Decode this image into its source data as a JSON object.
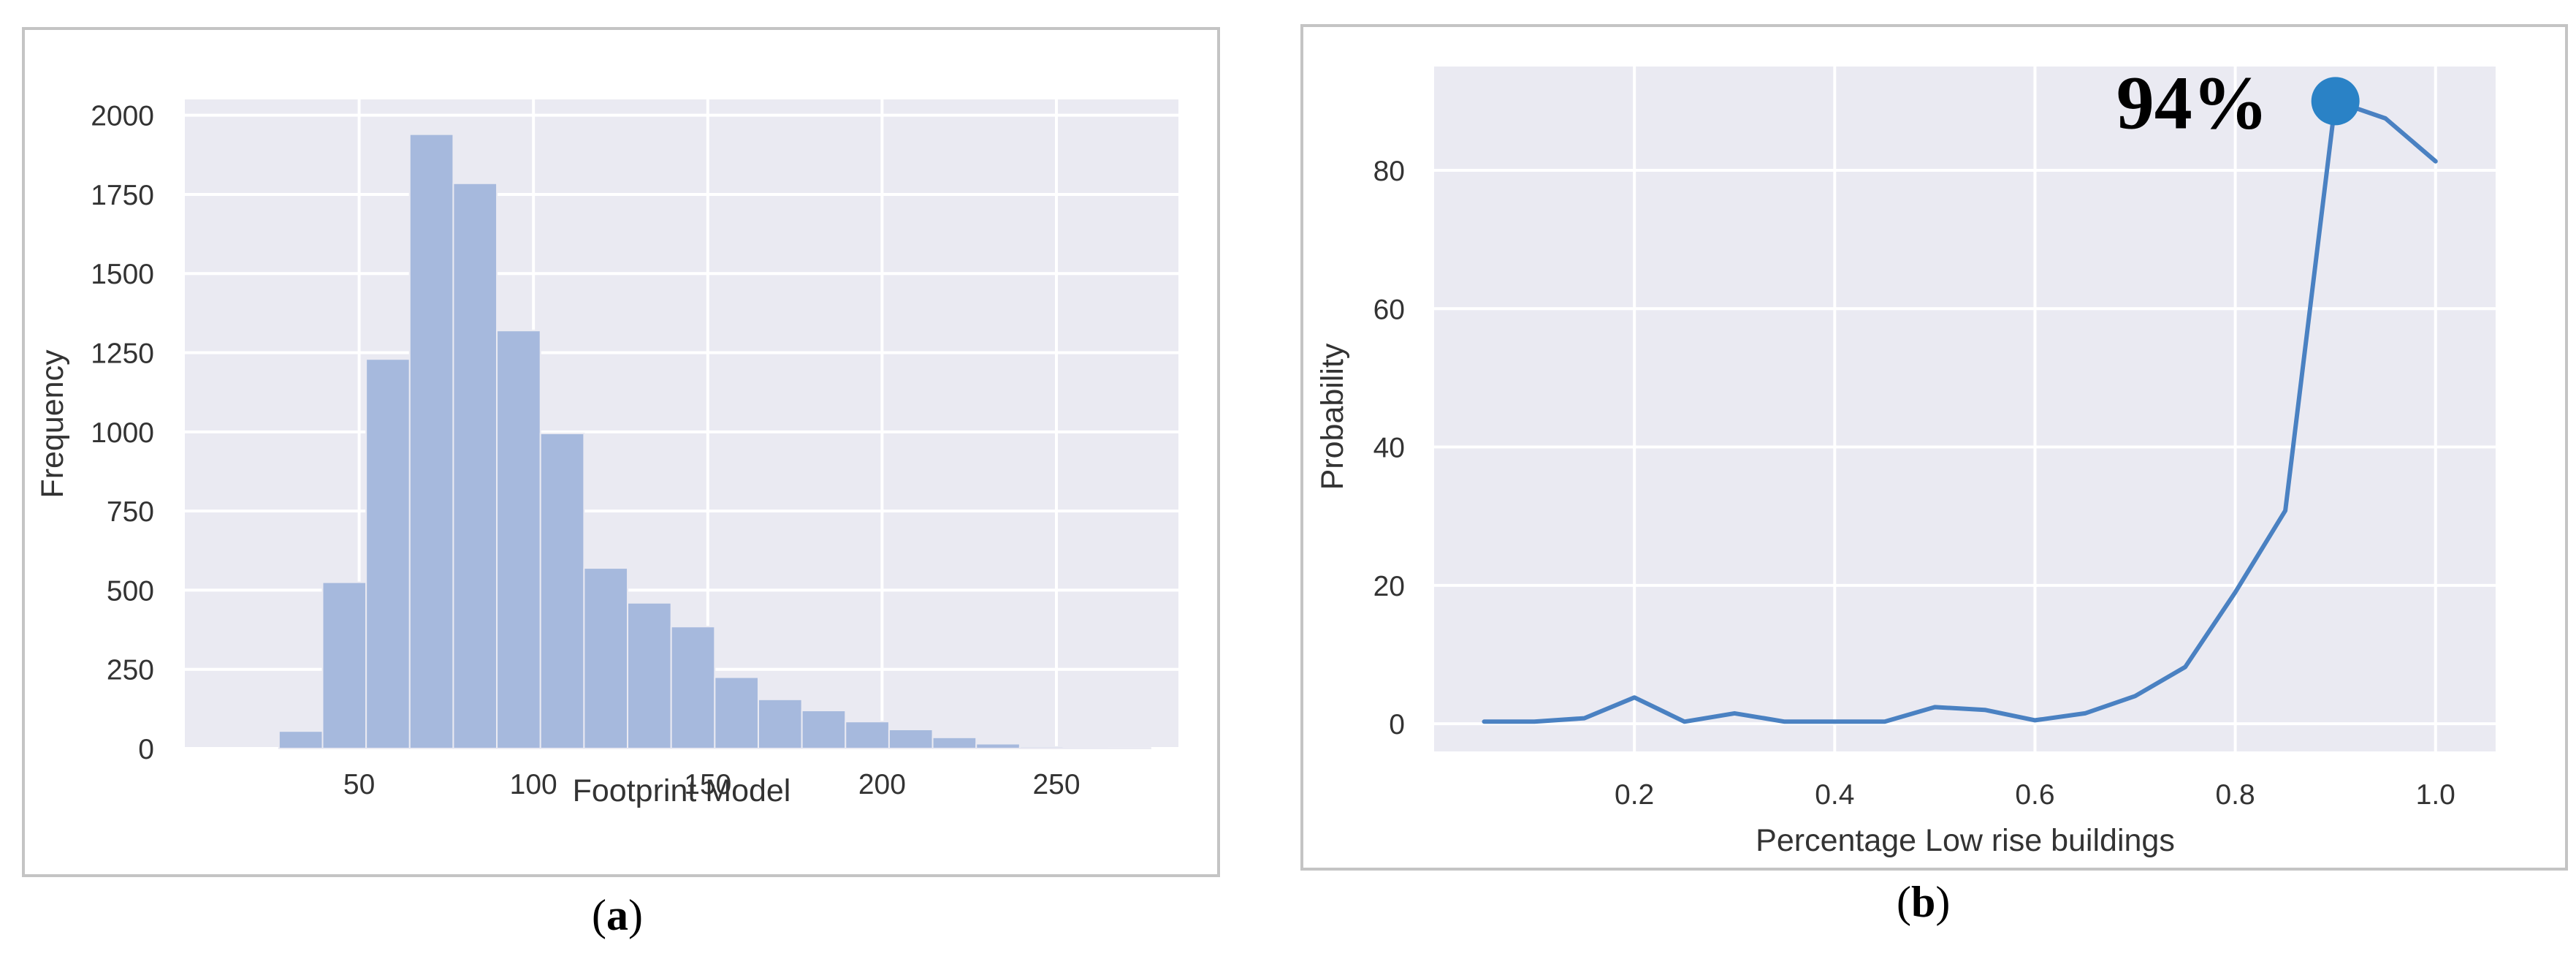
{
  "chart_data": [
    {
      "type": "bar",
      "panel_label": "a",
      "xlabel": "Footprint Model",
      "ylabel": "Frequency",
      "xlim": [
        0,
        285
      ],
      "ylim": [
        0,
        2050
      ],
      "xticks": [
        50,
        100,
        150,
        200,
        250
      ],
      "yticks": [
        0,
        250,
        500,
        750,
        1000,
        1250,
        1500,
        1750,
        2000
      ],
      "bins": [
        {
          "start": 27.0,
          "end": 39.5,
          "value": 55
        },
        {
          "start": 39.5,
          "end": 52.0,
          "value": 525
        },
        {
          "start": 52.0,
          "end": 64.5,
          "value": 1230
        },
        {
          "start": 64.5,
          "end": 77.0,
          "value": 1940
        },
        {
          "start": 77.0,
          "end": 89.5,
          "value": 1785
        },
        {
          "start": 89.5,
          "end": 102.0,
          "value": 1320
        },
        {
          "start": 102.0,
          "end": 114.5,
          "value": 995
        },
        {
          "start": 114.5,
          "end": 127.0,
          "value": 570
        },
        {
          "start": 127.0,
          "end": 139.5,
          "value": 460
        },
        {
          "start": 139.5,
          "end": 152.0,
          "value": 385
        },
        {
          "start": 152.0,
          "end": 164.5,
          "value": 225
        },
        {
          "start": 164.5,
          "end": 177.0,
          "value": 155
        },
        {
          "start": 177.0,
          "end": 189.5,
          "value": 120
        },
        {
          "start": 189.5,
          "end": 202.0,
          "value": 85
        },
        {
          "start": 202.0,
          "end": 214.5,
          "value": 60
        },
        {
          "start": 214.5,
          "end": 227.0,
          "value": 35
        },
        {
          "start": 227.0,
          "end": 239.5,
          "value": 15
        },
        {
          "start": 239.5,
          "end": 252.0,
          "value": 5
        },
        {
          "start": 252.0,
          "end": 264.5,
          "value": 3
        },
        {
          "start": 264.5,
          "end": 277.0,
          "value": 2
        }
      ],
      "bar_color": "#a6b9dd",
      "background": "#eaeaf2",
      "grid": true
    },
    {
      "type": "line",
      "panel_label": "b",
      "xlabel": "Percentage Low rise buildings",
      "ylabel": "Probability",
      "xlim": [
        0.0,
        1.06
      ],
      "ylim": [
        -4,
        95
      ],
      "xticks": [
        "0.2",
        "0.4",
        "0.6",
        "0.8",
        "1.0"
      ],
      "yticks": [
        0,
        20,
        40,
        60,
        80
      ],
      "x": [
        0.05,
        0.1,
        0.15,
        0.2,
        0.25,
        0.3,
        0.35,
        0.4,
        0.45,
        0.5,
        0.55,
        0.6,
        0.65,
        0.7,
        0.75,
        0.8,
        0.85,
        0.9,
        0.95,
        1.0
      ],
      "y": [
        0.3,
        0.3,
        0.8,
        3.8,
        0.3,
        1.5,
        0.3,
        0.3,
        0.3,
        2.4,
        2.0,
        0.5,
        1.5,
        4.0,
        8.2,
        19.0,
        30.8,
        90.0,
        87.5,
        81.3
      ],
      "highlight": {
        "x": 0.9,
        "y": 90.0,
        "label": "94%"
      },
      "line_color": "#4a81c2",
      "marker_color": "#2a82c6",
      "background": "#eaeaf2",
      "grid": true
    }
  ]
}
